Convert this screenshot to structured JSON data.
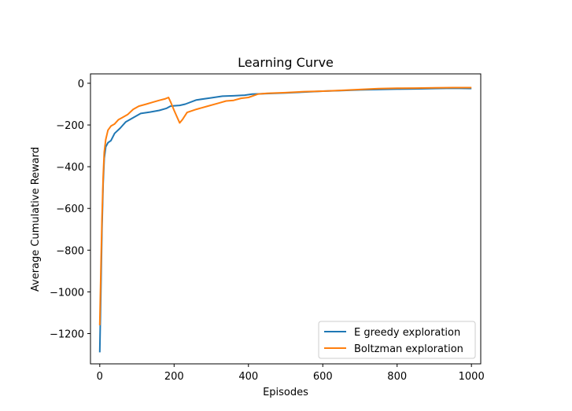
{
  "chart_data": {
    "type": "line",
    "title": "Learning Curve",
    "xlabel": "Episodes",
    "ylabel": "Average Cumulative Reward",
    "xlim": [
      -25,
      1025
    ],
    "ylim": [
      -1345,
      45
    ],
    "xticks": [
      0,
      200,
      400,
      600,
      800,
      1000
    ],
    "yticks": [
      0,
      -200,
      -400,
      -600,
      -800,
      -1000,
      -1200
    ],
    "grid": false,
    "legend_position": "lower right",
    "series": [
      {
        "name": "E greedy exploration",
        "color": "#1f77b4",
        "points": [
          [
            0,
            -1290
          ],
          [
            3,
            -1000
          ],
          [
            6,
            -700
          ],
          [
            9,
            -480
          ],
          [
            12,
            -360
          ],
          [
            16,
            -305
          ],
          [
            22,
            -285
          ],
          [
            30,
            -275
          ],
          [
            40,
            -240
          ],
          [
            55,
            -215
          ],
          [
            70,
            -185
          ],
          [
            90,
            -165
          ],
          [
            110,
            -145
          ],
          [
            135,
            -138
          ],
          [
            160,
            -130
          ],
          [
            180,
            -120
          ],
          [
            190,
            -110
          ],
          [
            200,
            -108
          ],
          [
            215,
            -106
          ],
          [
            230,
            -100
          ],
          [
            260,
            -80
          ],
          [
            300,
            -70
          ],
          [
            330,
            -62
          ],
          [
            360,
            -60
          ],
          [
            390,
            -57
          ],
          [
            410,
            -52
          ],
          [
            440,
            -50
          ],
          [
            500,
            -46
          ],
          [
            550,
            -42
          ],
          [
            600,
            -38
          ],
          [
            650,
            -35
          ],
          [
            700,
            -32
          ],
          [
            750,
            -30
          ],
          [
            800,
            -28
          ],
          [
            850,
            -27
          ],
          [
            900,
            -25
          ],
          [
            950,
            -24
          ],
          [
            1000,
            -25
          ]
        ]
      },
      {
        "name": "Boltzman exploration",
        "color": "#ff7f0e",
        "points": [
          [
            0,
            -1160
          ],
          [
            3,
            -900
          ],
          [
            6,
            -650
          ],
          [
            9,
            -450
          ],
          [
            12,
            -330
          ],
          [
            16,
            -270
          ],
          [
            22,
            -225
          ],
          [
            30,
            -205
          ],
          [
            40,
            -195
          ],
          [
            50,
            -175
          ],
          [
            60,
            -165
          ],
          [
            75,
            -150
          ],
          [
            90,
            -125
          ],
          [
            105,
            -110
          ],
          [
            125,
            -100
          ],
          [
            140,
            -92
          ],
          [
            160,
            -82
          ],
          [
            175,
            -75
          ],
          [
            185,
            -68
          ],
          [
            192,
            -95
          ],
          [
            200,
            -130
          ],
          [
            210,
            -170
          ],
          [
            215,
            -190
          ],
          [
            222,
            -175
          ],
          [
            235,
            -140
          ],
          [
            260,
            -125
          ],
          [
            290,
            -110
          ],
          [
            320,
            -95
          ],
          [
            340,
            -85
          ],
          [
            360,
            -82
          ],
          [
            380,
            -72
          ],
          [
            400,
            -68
          ],
          [
            425,
            -52
          ],
          [
            450,
            -48
          ],
          [
            500,
            -45
          ],
          [
            550,
            -40
          ],
          [
            600,
            -38
          ],
          [
            650,
            -34
          ],
          [
            700,
            -30
          ],
          [
            750,
            -26
          ],
          [
            800,
            -24
          ],
          [
            850,
            -23
          ],
          [
            900,
            -22
          ],
          [
            950,
            -21
          ],
          [
            1000,
            -21
          ]
        ]
      }
    ]
  }
}
